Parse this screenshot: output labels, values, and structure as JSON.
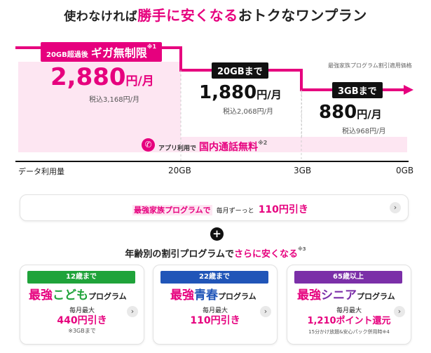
{
  "title": {
    "p1": "使わなければ",
    "p2": "勝手に安くなる",
    "p3": "おトクなワンプラン"
  },
  "tier1": {
    "label_prefix": "20GB超過後",
    "label_main": "ギガ無制限",
    "note": "※1",
    "price": "2,880",
    "unit": "円/月",
    "tax": "税込3,168円/月"
  },
  "tier2": {
    "tag": "20GBまで",
    "price": "1,880",
    "unit": "円/月",
    "tax": "税込2,068円/月"
  },
  "tier3": {
    "tag": "3GBまで",
    "price": "880",
    "unit": "円/月",
    "tax": "税込968円/月"
  },
  "price_note": "最強家族プログラム割引適用価格",
  "call": {
    "prefix": "アプリ利用で",
    "main": "国内通話無料",
    "note": "※2"
  },
  "axis": {
    "label": "データ利用量",
    "t1": "20GB",
    "t2": "3GB",
    "t3": "0GB"
  },
  "family": {
    "name": "最強家族プログラムで",
    "mid": "毎月ずーっと",
    "amount": "110円引き"
  },
  "plus_symbol": "+",
  "age_heading": {
    "p1": "年齢別の割引プログラムで",
    "p2": "さらに安くなる",
    "note": "※3"
  },
  "programs": [
    {
      "age": "12歳まで",
      "n1": "最強",
      "n2": "こども",
      "n3": "プログラム",
      "small": "毎月最大",
      "amount": "440円引き",
      "note": "※3GBまで"
    },
    {
      "age": "22歳まで",
      "n1": "最強",
      "n2": "青春",
      "n3": "プログラム",
      "small": "毎月最大",
      "amount": "110円引き",
      "note": ""
    },
    {
      "age": "65歳以上",
      "n1": "最強",
      "n2": "シニア",
      "n3": "プログラム",
      "small": "毎月最大",
      "amount": "1,210ポイント還元",
      "note": "15分かけ放題&安心パック併用時※4"
    }
  ],
  "colors": {
    "accent": "#e6007e",
    "green": "#1fa33a",
    "blue": "#2055b8",
    "purple": "#7b2fa8"
  }
}
